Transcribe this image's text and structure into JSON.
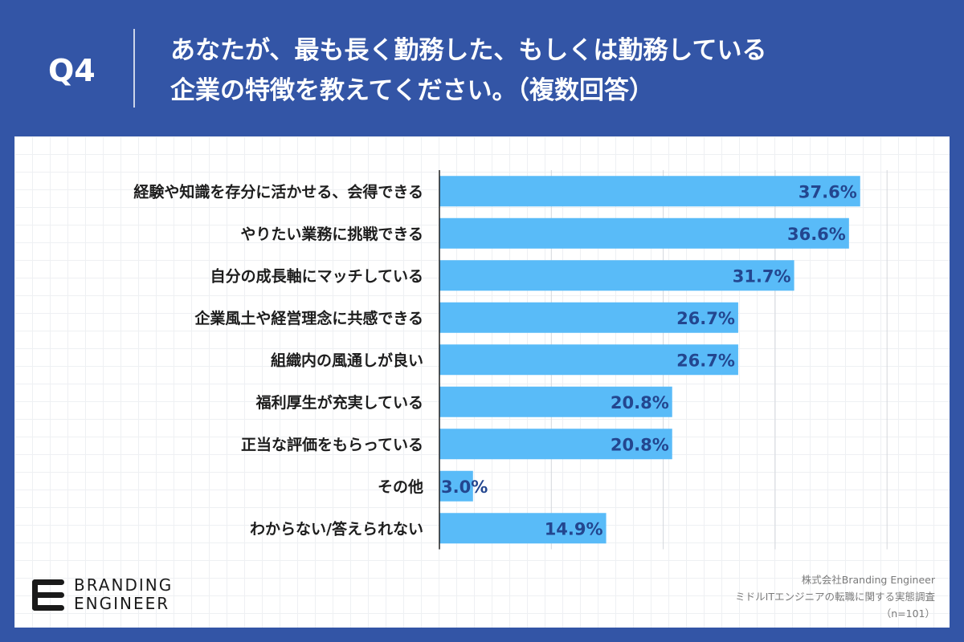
{
  "header": {
    "question_number": "Q4",
    "title_line1": "あなたが、最も長く勤務した、もしくは勤務している",
    "title_line2": "企業の特徴を教えてください。（複数回答）"
  },
  "chart_data": {
    "type": "bar",
    "orientation": "horizontal",
    "categories": [
      "経験や知識を存分に活かせる、会得できる",
      "やりたい業務に挑戦できる",
      "自分の成長軸にマッチしている",
      "企業風土や経営理念に共感できる",
      "組織内の風通しが良い",
      "福利厚生が充実している",
      "正当な評価をもらっている",
      "その他",
      "わからない/答えられない"
    ],
    "values": [
      37.6,
      36.6,
      31.7,
      26.7,
      26.7,
      20.8,
      20.8,
      3.0,
      14.9
    ],
    "value_labels": [
      "37.6%",
      "36.6%",
      "31.7%",
      "26.7%",
      "26.7%",
      "20.8%",
      "20.8%",
      "3.0%",
      "14.9%"
    ],
    "xlim": [
      0,
      40
    ],
    "grid": true,
    "bar_color": "#59bbf8",
    "label_color": "#23468f"
  },
  "footer": {
    "logo_line1": "BRANDING",
    "logo_line2": "ENGINEER",
    "source_line1": "株式会社Branding Engineer",
    "source_line2": "ミドルITエンジニアの転職に関する実態調査",
    "source_line3": "（n=101）"
  }
}
